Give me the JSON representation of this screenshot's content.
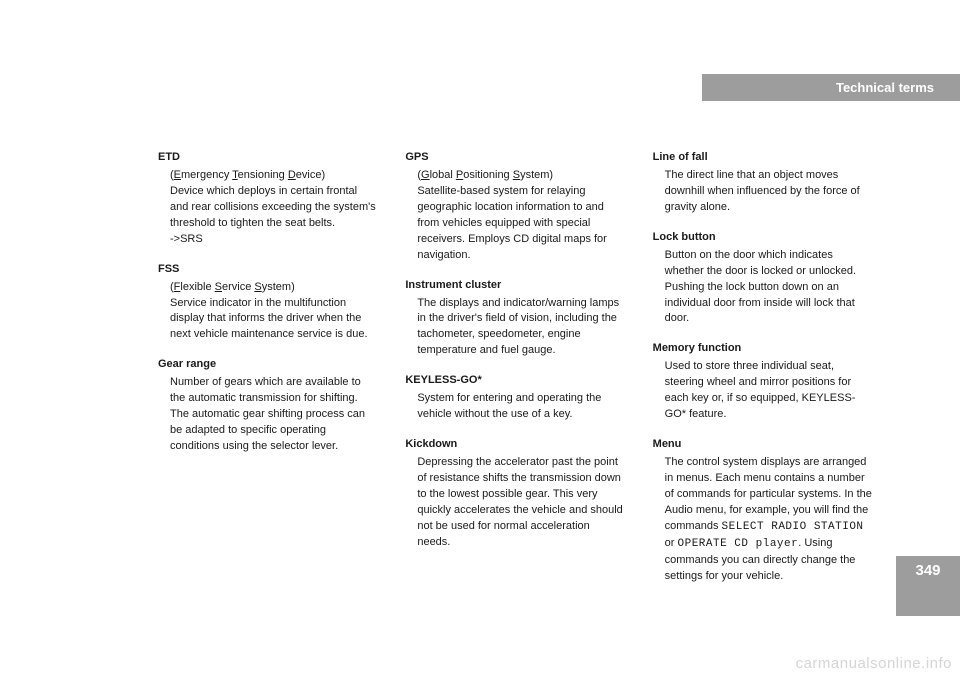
{
  "header": {
    "title": "Technical terms"
  },
  "page_number": "349",
  "watermark": "carmanualsonline.info",
  "col1": {
    "etd": {
      "term": "ETD",
      "expansion_pre": "(",
      "e": "E",
      "mergency": "mergency ",
      "t": "T",
      "ensioning": "ensioning ",
      "d": "D",
      "evice": "evice)",
      "body1": "Device which deploys in certain frontal and rear collisions exceeding the system's threshold to tighten the seat belts.",
      "body2": "->SRS"
    },
    "fss": {
      "term": "FSS",
      "expansion_pre": "(",
      "f": "F",
      "lexible": "lexible ",
      "s1": "S",
      "ervice": "ervice ",
      "s2": "S",
      "ystem": "ystem)",
      "body": "Service indicator in the multifunction display that informs the driver when the next vehicle maintenance service is due."
    },
    "gear": {
      "term": "Gear range",
      "body": "Number of gears which are available to the automatic transmission for shifting. The automatic gear shifting process can be adapted to specific operating conditions using the selector lever."
    }
  },
  "col2": {
    "gps": {
      "term": "GPS",
      "expansion_pre": "(",
      "g": "G",
      "lobal": "lobal ",
      "p": "P",
      "ositioning": "ositioning ",
      "s": "S",
      "ystem": "ystem)",
      "body": "Satellite-based system for relaying geographic location information to and from vehicles equipped with special receivers. Employs CD digital maps for navigation."
    },
    "instr": {
      "term": "Instrument cluster",
      "body": "The displays and indicator/warning lamps in the driver's field of vision, including the tachometer, speedometer, engine temperature and fuel gauge."
    },
    "keyless": {
      "term": "KEYLESS-GO*",
      "body": "System for entering and operating the vehicle without the use of a key."
    },
    "kick": {
      "term": "Kickdown",
      "body": "Depressing the accelerator past the point of resistance shifts the transmission down to the lowest possible gear. This very quickly accelerates the vehicle and should not be used for normal acceleration needs."
    }
  },
  "col3": {
    "lof": {
      "term": "Line of fall",
      "body": "The direct line that an object moves downhill when influenced by the force of gravity alone."
    },
    "lock": {
      "term": "Lock button",
      "body": "Button on the door which indicates whether the door is locked or unlocked. Pushing the lock button down on an individual door from inside will lock that door."
    },
    "mem": {
      "term": "Memory function",
      "body": "Used to store three individual seat, steering wheel and mirror positions for each key or, if so equipped, KEYLESS-GO* feature."
    },
    "menu": {
      "term": "Menu",
      "body_pre": "The control system displays are arranged in menus. Each menu contains a number of commands for particular systems. In the Audio menu, for example, you will find the commands ",
      "cmd1": "SELECT RADIO STATION",
      "or": " or ",
      "cmd2": "OPERATE CD player",
      "body_post": ". Using commands you can directly change the settings for your vehicle."
    }
  }
}
